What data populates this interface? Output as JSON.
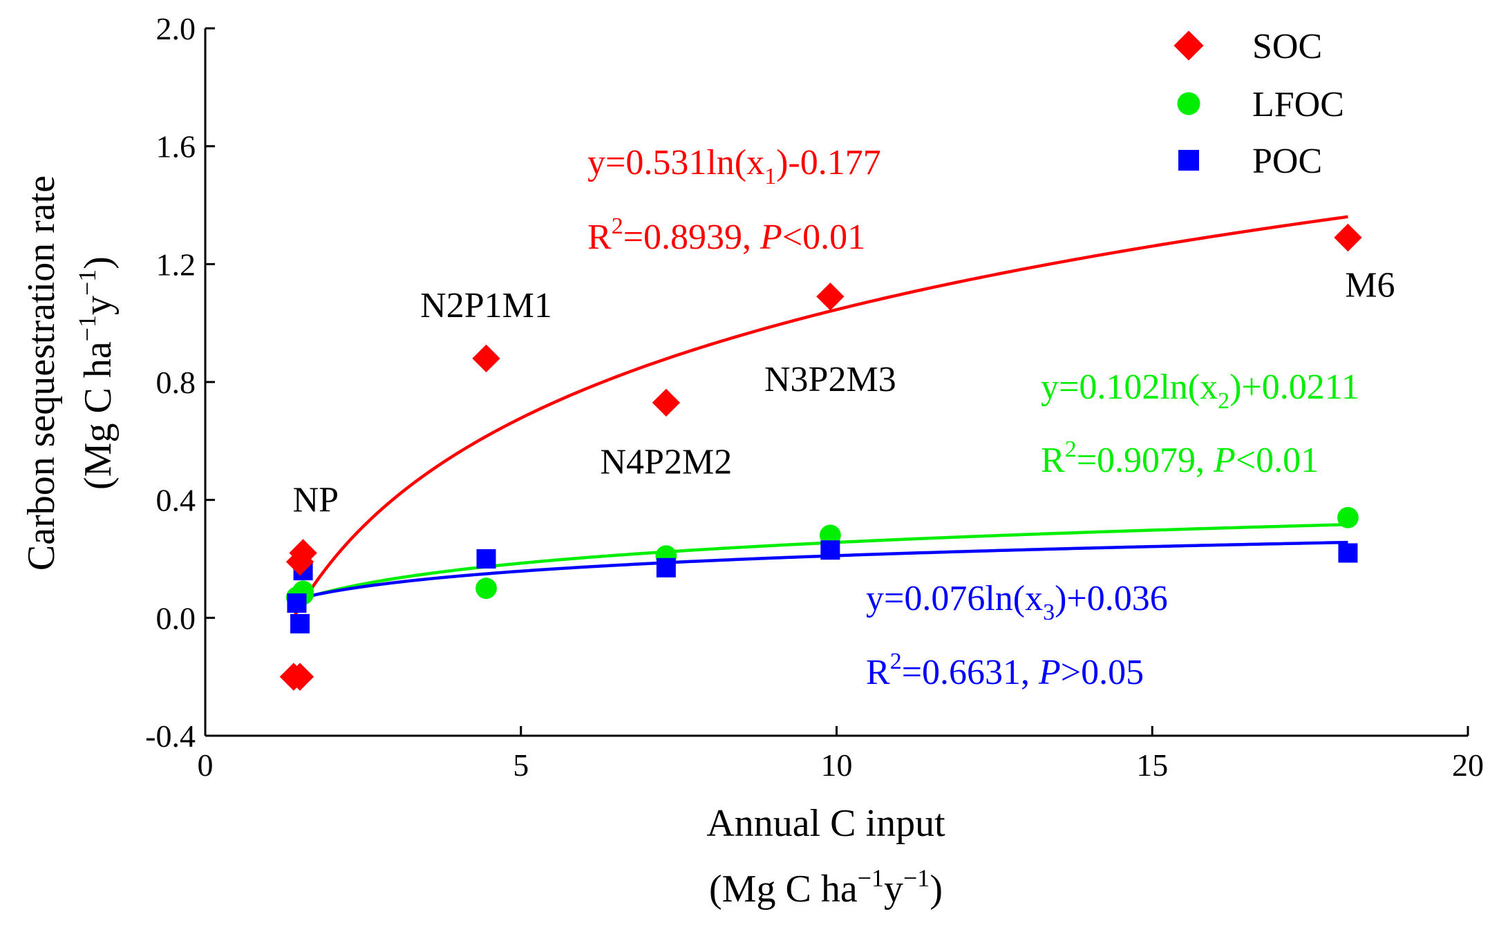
{
  "chart_data": {
    "type": "scatter",
    "title": "",
    "xlabel": {
      "line1": "Annual C input",
      "line2_prefix": "(Mg C ha",
      "line2_sup1": "−1",
      "line2_mid": "y",
      "line2_sup2": "−1",
      "line2_suffix": ")"
    },
    "ylabel": {
      "line1": "Carbon sequestration rate",
      "line2_prefix": "(Mg C ha",
      "line2_sup1": "−1",
      "line2_mid": "y",
      "line2_sup2": "−1",
      "line2_suffix": ")"
    },
    "xlim": [
      0,
      20
    ],
    "ylim": [
      -0.4,
      2.0
    ],
    "xticks": [
      0,
      5,
      10,
      15,
      20
    ],
    "xtick_labels": [
      "0",
      "5",
      "10",
      "15",
      "20"
    ],
    "yticks": [
      -0.4,
      0.0,
      0.4,
      0.8,
      1.2,
      1.6,
      2.0
    ],
    "ytick_labels": [
      "-0.4",
      "0.0",
      "0.4",
      "0.8",
      "1.2",
      "1.6",
      "2.0"
    ],
    "grid": false,
    "legend_position": "top-right",
    "series": [
      {
        "name": "SOC",
        "marker": "diamond",
        "color": "#ff0000",
        "points": [
          [
            1.4,
            -0.2
          ],
          [
            1.5,
            -0.2
          ],
          [
            1.5,
            0.19
          ],
          [
            1.55,
            0.22
          ],
          [
            4.45,
            0.88
          ],
          [
            7.3,
            0.73
          ],
          [
            9.9,
            1.09
          ],
          [
            18.1,
            1.29
          ]
        ],
        "fit": {
          "a": 0.531,
          "b": -0.177,
          "x_from": 1.4,
          "x_to": 18.1
        },
        "equation": {
          "prefix": "y=0.531ln(x",
          "sub": "1",
          "suffix": ")-0.177"
        },
        "r2": {
          "prefix": "R",
          "sup": "2",
          "mid": "=0.8939, ",
          "p": "P",
          "rel": "<0.01"
        }
      },
      {
        "name": "LFOC",
        "marker": "circle",
        "color": "#00ee00",
        "points": [
          [
            1.45,
            0.07
          ],
          [
            1.55,
            0.08
          ],
          [
            1.55,
            0.09
          ],
          [
            4.45,
            0.1
          ],
          [
            7.3,
            0.21
          ],
          [
            9.9,
            0.28
          ],
          [
            18.1,
            0.34
          ]
        ],
        "fit": {
          "a": 0.102,
          "b": 0.0211,
          "x_from": 1.45,
          "x_to": 18.1
        },
        "equation": {
          "prefix": "y=0.102ln(x",
          "sub": "2",
          "suffix": ")+0.0211"
        },
        "r2": {
          "prefix": "R",
          "sup": "2",
          "mid": "=0.9079, ",
          "p": "P",
          "rel": "<0.01"
        }
      },
      {
        "name": "POC",
        "marker": "square",
        "color": "#0000ff",
        "points": [
          [
            1.45,
            0.05
          ],
          [
            1.5,
            -0.02
          ],
          [
            1.55,
            0.16
          ],
          [
            4.45,
            0.2
          ],
          [
            7.3,
            0.17
          ],
          [
            9.9,
            0.23
          ],
          [
            18.1,
            0.22
          ]
        ],
        "fit": {
          "a": 0.076,
          "b": 0.036,
          "x_from": 1.45,
          "x_to": 18.1
        },
        "equation": {
          "prefix": "y=0.076ln(x",
          "sub": "3",
          "suffix": ")+0.036"
        },
        "r2": {
          "prefix": "R",
          "sup": "2",
          "mid": "=0.6631, ",
          "p": "P",
          "rel": ">0.05"
        }
      }
    ],
    "point_labels": [
      {
        "text": "NP",
        "x": 1.75,
        "y": 0.36
      },
      {
        "text": "N2P1M1",
        "x": 4.45,
        "y": 1.02
      },
      {
        "text": "N4P2M2",
        "x": 7.3,
        "y": 0.49
      },
      {
        "text": "N3P2M3",
        "x": 9.9,
        "y": 0.77
      },
      {
        "text": "M6",
        "x": 18.45,
        "y": 1.09
      }
    ]
  }
}
